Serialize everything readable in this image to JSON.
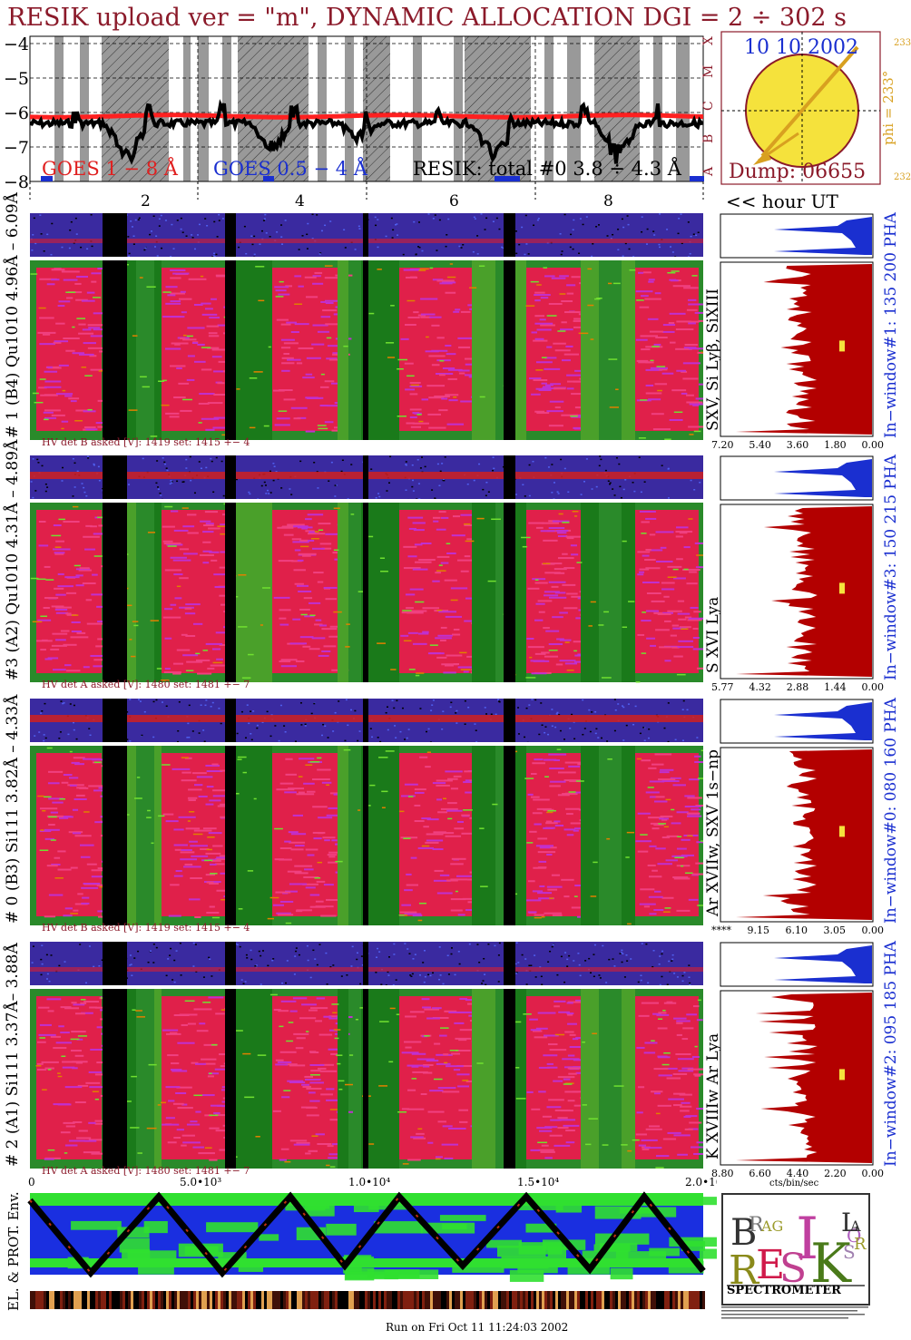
{
  "header": {
    "title": "RESIK upload ver = \"m\", DYNAMIC ALLOCATION  DGI =   2 ÷ 302 s"
  },
  "goes": {
    "y_ticks": [
      "−4",
      "−5",
      "−6",
      "−7",
      "−8"
    ],
    "legend_goes18": "GOES 1 − 8 Å",
    "legend_goes054": "GOES 0.5 − 4 Å",
    "legend_resik": "RESIK: total #0  3.8 ÷ 4.3 Å",
    "class_labels": [
      "X",
      "M",
      "C",
      "B",
      "A"
    ],
    "hour_ticks": [
      "2",
      "4",
      "6",
      "8"
    ],
    "hour_label": "<< hour UT"
  },
  "sun": {
    "date": "10 10 2002",
    "dump": "Dump: 06655",
    "phi": "phi = 233°",
    "phi_top": "233",
    "phi_bottom": "232"
  },
  "panels": [
    {
      "left_label": "# 1 (B4) Qu1010 4.96Å – 6.09Å",
      "right_label": "SXV, Si Lyβ, SiXIII",
      "window_label": "In−window#1:  135 200 PHA",
      "hv": "HV det B asked [V]:  1419 set:  1415 +−    4",
      "axis_ticks": [
        "7.20",
        "5.40",
        "3.60",
        "1.80",
        "0.00"
      ]
    },
    {
      "left_label": "#3 (A2) Qu1010  4.31Å – 4.89Å",
      "right_label": "S XVI Lya",
      "window_label": "In−window#3:  150 215 PHA",
      "hv": "HV det A asked [V]:  1480 set:  1481 +−    7",
      "axis_ticks": [
        "5.77",
        "4.32",
        "2.88",
        "1.44",
        "0.00"
      ]
    },
    {
      "left_label": "# 0 (B3) Si111  3.82Å – 4.33Å",
      "right_label": "Ar XVIIw, SXV 1s−np",
      "window_label": "In−window#0:  080 160 PHA",
      "hv": "HV det B asked [V]:  1419 set:  1415 +−    4",
      "axis_ticks": [
        "****",
        "9.15",
        "6.10",
        "3.05",
        "0.00"
      ]
    },
    {
      "left_label": "# 2 (A1) Si111  3.37Å– 3.88Å",
      "right_label": "K XVIIIw  Ar Lya",
      "window_label": "In−window#2:  095 185 PHA",
      "hv": "HV det A asked [V]:  1480 set:  1481 +−    7",
      "axis_ticks": [
        "8.80",
        "6.60",
        "4.40",
        "2.20",
        "0.00"
      ],
      "axis_unit": "cts/bin/sec"
    }
  ],
  "env": {
    "x_ticks": [
      "0",
      "5.0•10³",
      "1.0•10⁴",
      "1.5•10⁴",
      "2.0•10⁴"
    ],
    "left_label": "EL. & PROT. Env."
  },
  "logo": {
    "letters": [
      "B",
      "R",
      "A",
      "G",
      "R",
      "E",
      "S",
      "I",
      "K",
      "S",
      "O",
      "L",
      "A",
      "R"
    ],
    "bottom": "SPECTROMETER"
  },
  "footer": {
    "run_text": "Run on Fri Oct 11 11:24:03 2002"
  },
  "chart_data": {
    "type": "line",
    "title": "RESIK upload ver = \"m\", DYNAMIC ALLOCATION  DGI =   2 ÷ 302 s",
    "xlabel": "<< hour UT",
    "ylabel": "",
    "x_ticks": [
      2,
      4,
      6,
      8
    ],
    "ylim": [
      -8,
      -4
    ],
    "series": [
      {
        "name": "GOES 1 − 8 Å",
        "values": [
          -6.1,
          -6.1,
          -6.1,
          -6.05,
          -6.0,
          -6.0,
          -6.0,
          -6.05,
          -6.0
        ]
      },
      {
        "name": "RESIK: total #0  3.8 ÷ 4.3 Å",
        "values": [
          -6.2,
          -6.3,
          -7.6,
          -6.2,
          -6.3,
          -7.2,
          -6.2,
          -7.7,
          -6.3
        ]
      }
    ],
    "colors": {
      "goes18": "#ff2020",
      "goes054": "#1a2fd0",
      "resik": "#000000",
      "title": "#8b1a2a",
      "histogram": "#b30000",
      "pha": "#1a2fd0"
    }
  }
}
